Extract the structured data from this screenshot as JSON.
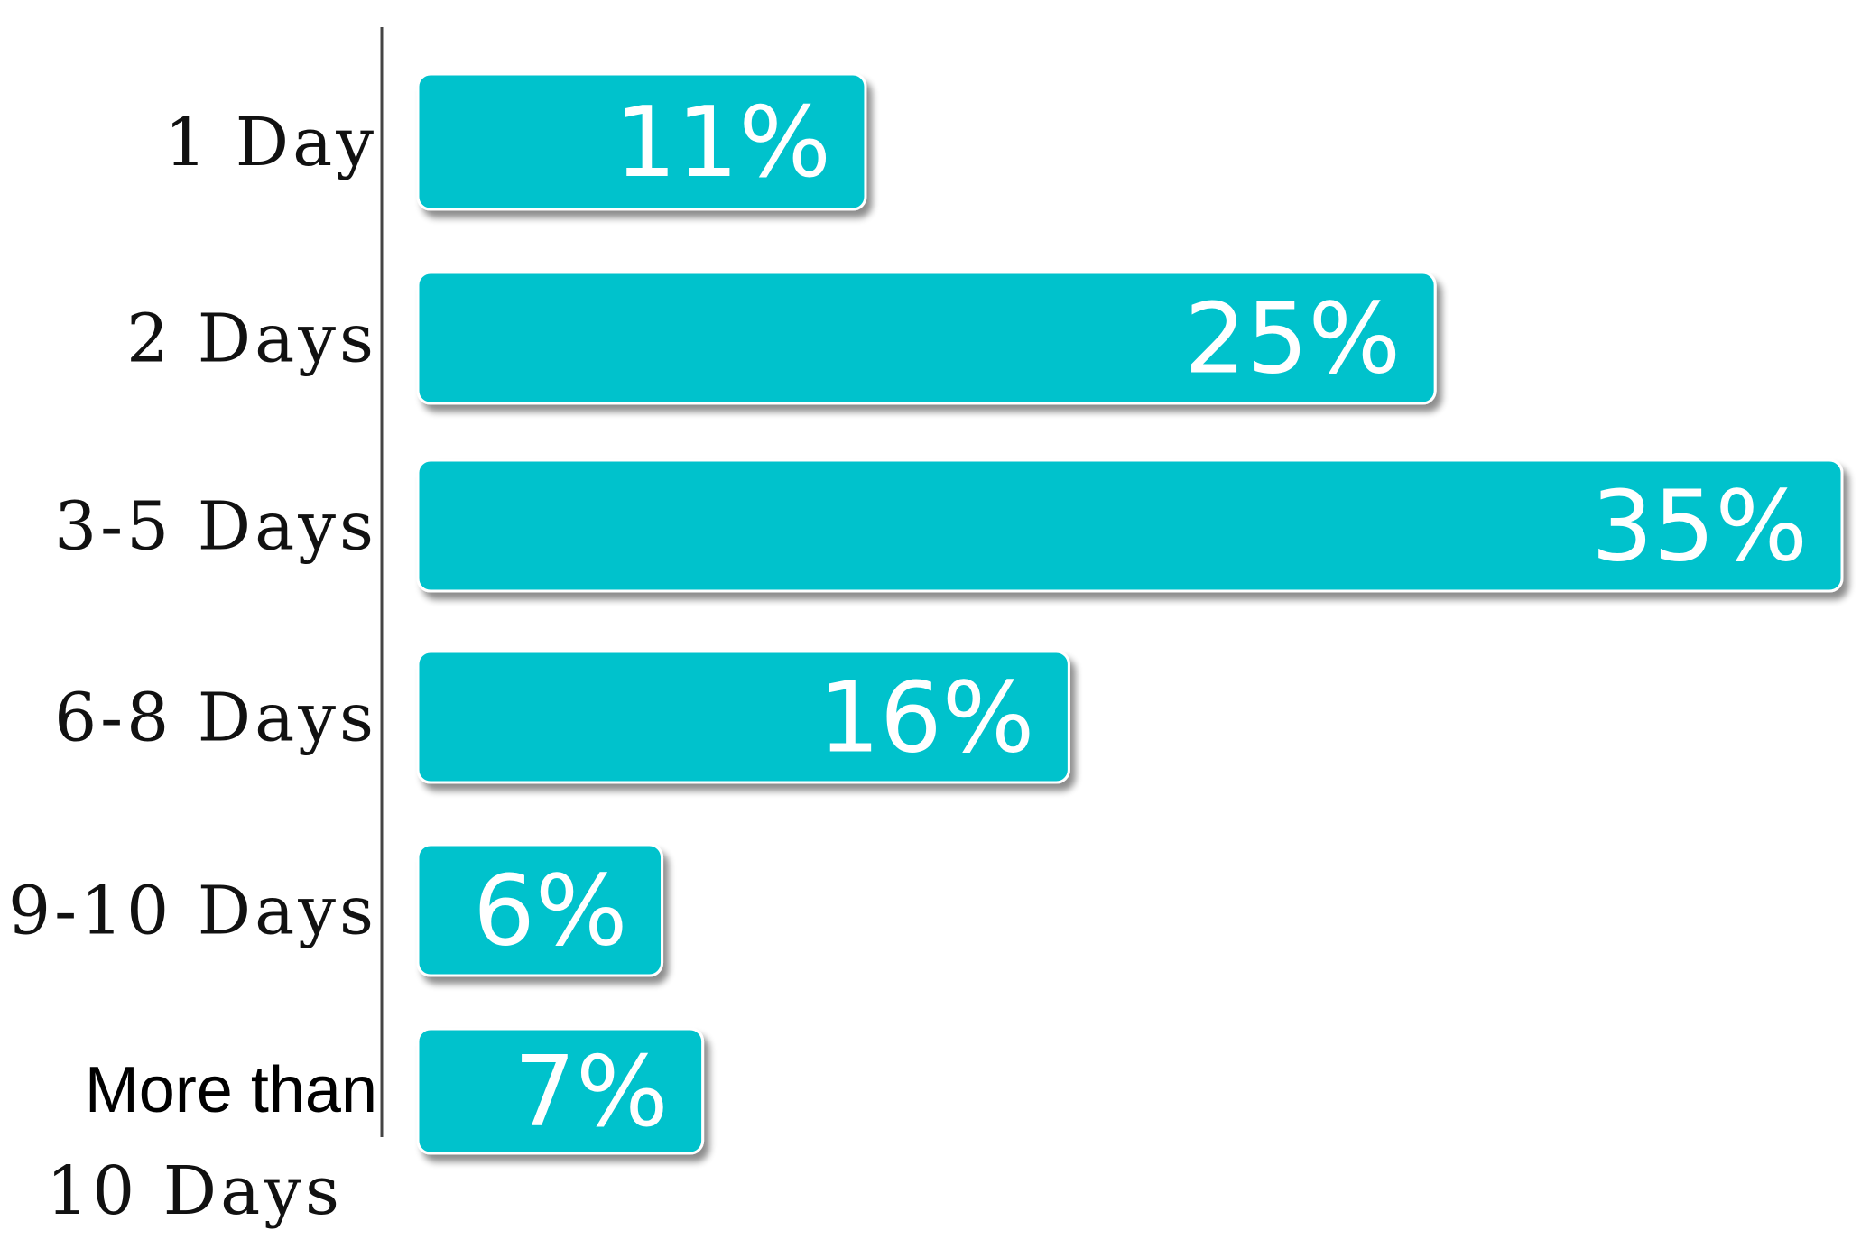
{
  "chart_data": {
    "type": "bar",
    "orientation": "horizontal",
    "categories": [
      "1 Day",
      "2 Days",
      "3-5 Days",
      "6-8 Days",
      "9-10 Days",
      "More than 10 Days"
    ],
    "category_lines": [
      [
        "1 Day"
      ],
      [
        "2 Days"
      ],
      [
        "3-5 Days"
      ],
      [
        "6-8 Days"
      ],
      [
        "9-10 Days"
      ],
      [
        "More than",
        "10 Days"
      ]
    ],
    "values": [
      11,
      25,
      35,
      16,
      6,
      7
    ],
    "value_labels": [
      "11%",
      "25%",
      "35%",
      "16%",
      "6%",
      "7%"
    ],
    "unit": "%",
    "bar_color": "#00C2CC",
    "title": "",
    "xlabel": "",
    "ylabel": "",
    "grid": false,
    "legend": "none"
  }
}
